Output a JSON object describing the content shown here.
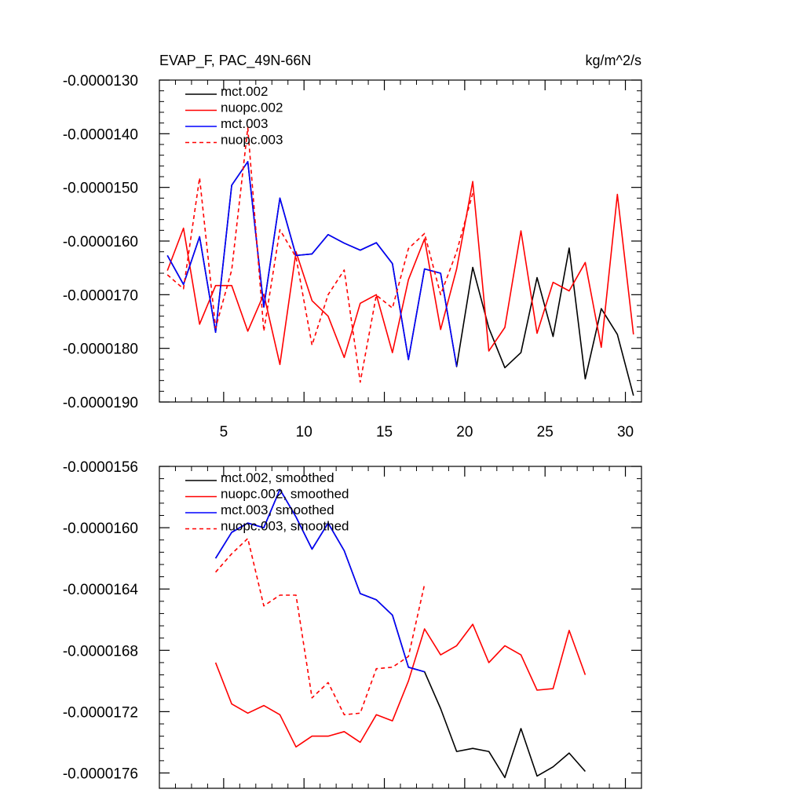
{
  "chart_data": [
    {
      "type": "line",
      "title": "EVAP_F, PAC_49N-66N",
      "units": "kg/m^2/s",
      "xlim": [
        1,
        31
      ],
      "ylim": [
        -1.9e-05,
        -1.3e-05
      ],
      "x_ticks": [
        5,
        10,
        15,
        20,
        25,
        30
      ],
      "x_tick_labels": [
        "5",
        "10",
        "15",
        "20",
        "25",
        "30"
      ],
      "y_ticks": [
        -1.3e-05,
        -1.4e-05,
        -1.5e-05,
        -1.6e-05,
        -1.7e-05,
        -1.8e-05,
        -1.9e-05
      ],
      "y_tick_labels": [
        "-0.0000130",
        "-0.0000140",
        "-0.0000150",
        "-0.0000160",
        "-0.0000170",
        "-0.0000180",
        "-0.0000190"
      ],
      "legend_position": "top-left",
      "series": [
        {
          "name": "mct.002",
          "color": "#000000",
          "dash": "solid",
          "x": [
            1.5,
            2.5,
            3.5,
            4.5,
            5.5,
            6.5,
            7.5,
            8.5,
            9.5,
            10.5,
            11.5,
            12.5,
            13.5,
            14.5,
            15.5,
            16.5,
            17.5,
            18.5,
            19.5,
            20.5,
            21.5,
            22.5,
            23.5,
            24.5,
            25.5,
            26.5,
            27.5,
            28.5,
            29.5,
            30.5
          ],
          "values": [
            -1.627e-05,
            -1.681e-05,
            -1.592e-05,
            -1.77e-05,
            -1.496e-05,
            -1.452e-05,
            -1.723e-05,
            -1.52e-05,
            -1.627e-05,
            -1.624e-05,
            -1.588e-05,
            -1.604e-05,
            -1.617e-05,
            -1.603e-05,
            -1.642e-05,
            -1.821e-05,
            -1.652e-05,
            -1.66e-05,
            -1.834e-05,
            -1.649e-05,
            -1.762e-05,
            -1.836e-05,
            -1.808e-05,
            -1.668e-05,
            -1.778e-05,
            -1.613e-05,
            -1.857e-05,
            -1.726e-05,
            -1.774e-05,
            -1.888e-05
          ]
        },
        {
          "name": "nuopc.002",
          "color": "#ff0000",
          "dash": "solid",
          "x": [
            1.5,
            2.5,
            3.5,
            4.5,
            5.5,
            6.5,
            7.5,
            8.5,
            9.5,
            10.5,
            11.5,
            12.5,
            13.5,
            14.5,
            15.5,
            16.5,
            17.5,
            18.5,
            19.5,
            20.5,
            21.5,
            22.5,
            23.5,
            24.5,
            25.5,
            26.5,
            27.5,
            28.5,
            29.5,
            30.5
          ],
          "values": [
            -1.655e-05,
            -1.576e-05,
            -1.755e-05,
            -1.683e-05,
            -1.683e-05,
            -1.768e-05,
            -1.699e-05,
            -1.83e-05,
            -1.62e-05,
            -1.711e-05,
            -1.74e-05,
            -1.817e-05,
            -1.716e-05,
            -1.7e-05,
            -1.808e-05,
            -1.672e-05,
            -1.596e-05,
            -1.765e-05,
            -1.652e-05,
            -1.489e-05,
            -1.805e-05,
            -1.761e-05,
            -1.581e-05,
            -1.772e-05,
            -1.677e-05,
            -1.693e-05,
            -1.64e-05,
            -1.798e-05,
            -1.513e-05,
            -1.774e-05
          ]
        },
        {
          "name": "mct.003",
          "color": "#0000ff",
          "dash": "solid",
          "x": [
            1.5,
            2.5,
            3.5,
            4.5,
            5.5,
            6.5,
            7.5,
            8.5,
            9.5,
            10.5,
            11.5,
            12.5,
            13.5,
            14.5,
            15.5,
            16.5,
            17.5,
            18.5,
            19.5
          ],
          "values": [
            -1.627e-05,
            -1.681e-05,
            -1.592e-05,
            -1.77e-05,
            -1.496e-05,
            -1.452e-05,
            -1.723e-05,
            -1.52e-05,
            -1.627e-05,
            -1.624e-05,
            -1.588e-05,
            -1.604e-05,
            -1.617e-05,
            -1.603e-05,
            -1.642e-05,
            -1.821e-05,
            -1.652e-05,
            -1.66e-05,
            -1.834e-05
          ]
        },
        {
          "name": "nuopc.003",
          "color": "#ff0000",
          "dash": "dashed",
          "x": [
            1.5,
            2.5,
            3.5,
            4.5,
            5.5,
            6.5,
            7.5,
            8.5,
            9.5,
            10.5,
            11.5,
            12.5,
            13.5,
            14.5,
            15.5,
            16.5,
            17.5,
            18.5,
            19.5,
            20.5
          ],
          "values": [
            -1.663e-05,
            -1.689e-05,
            -1.482e-05,
            -1.762e-05,
            -1.654e-05,
            -1.389e-05,
            -1.768e-05,
            -1.579e-05,
            -1.63e-05,
            -1.794e-05,
            -1.7e-05,
            -1.654e-05,
            -1.863e-05,
            -1.701e-05,
            -1.725e-05,
            -1.614e-05,
            -1.586e-05,
            -1.7e-05,
            -1.62e-05,
            -1.511e-05
          ]
        }
      ]
    },
    {
      "type": "line",
      "title": "",
      "units": "",
      "xlim": [
        1,
        31
      ],
      "ylim": [
        -1.77e-05,
        -1.56e-05
      ],
      "x_ticks": [
        5,
        10,
        15,
        20,
        25,
        30
      ],
      "x_tick_labels": [],
      "y_ticks": [
        -1.56e-05,
        -1.6e-05,
        -1.64e-05,
        -1.68e-05,
        -1.72e-05,
        -1.76e-05
      ],
      "y_tick_labels": [
        "-0.0000156",
        "-0.0000160",
        "-0.0000164",
        "-0.0000168",
        "-0.0000172",
        "-0.0000176"
      ],
      "legend_position": "top-left",
      "series": [
        {
          "name": "mct.002, smoothed",
          "color": "#000000",
          "dash": "solid",
          "x": [
            4.5,
            5.5,
            6.5,
            7.5,
            8.5,
            9.5,
            10.5,
            11.5,
            12.5,
            13.5,
            14.5,
            15.5,
            16.5,
            17.5,
            18.5,
            19.5,
            20.5,
            21.5,
            22.5,
            23.5,
            24.5,
            25.5,
            26.5,
            27.5
          ],
          "values": [
            -1.62e-05,
            -1.603e-05,
            -1.597e-05,
            -1.6e-05,
            -1.575e-05,
            -1.593e-05,
            -1.614e-05,
            -1.597e-05,
            -1.615e-05,
            -1.643e-05,
            -1.647e-05,
            -1.657e-05,
            -1.691e-05,
            -1.694e-05,
            -1.718e-05,
            -1.746e-05,
            -1.744e-05,
            -1.746e-05,
            -1.763e-05,
            -1.731e-05,
            -1.762e-05,
            -1.756e-05,
            -1.747e-05,
            -1.759e-05
          ]
        },
        {
          "name": "nuopc.002, smoothed",
          "color": "#ff0000",
          "dash": "solid",
          "x": [
            4.5,
            5.5,
            6.5,
            7.5,
            8.5,
            9.5,
            10.5,
            11.5,
            12.5,
            13.5,
            14.5,
            15.5,
            16.5,
            17.5,
            18.5,
            19.5,
            20.5,
            21.5,
            22.5,
            23.5,
            24.5,
            25.5,
            26.5,
            27.5
          ],
          "values": [
            -1.688e-05,
            -1.715e-05,
            -1.721e-05,
            -1.716e-05,
            -1.722e-05,
            -1.743e-05,
            -1.736e-05,
            -1.736e-05,
            -1.733e-05,
            -1.74e-05,
            -1.722e-05,
            -1.726e-05,
            -1.7e-05,
            -1.666e-05,
            -1.683e-05,
            -1.677e-05,
            -1.663e-05,
            -1.688e-05,
            -1.677e-05,
            -1.683e-05,
            -1.706e-05,
            -1.705e-05,
            -1.667e-05,
            -1.696e-05
          ]
        },
        {
          "name": "mct.003, smoothed",
          "color": "#0000ff",
          "dash": "solid",
          "x": [
            4.5,
            5.5,
            6.5,
            7.5,
            8.5,
            9.5,
            10.5,
            11.5,
            12.5,
            13.5,
            14.5,
            15.5,
            16.5,
            17.5
          ],
          "values": [
            -1.62e-05,
            -1.603e-05,
            -1.597e-05,
            -1.6e-05,
            -1.575e-05,
            -1.593e-05,
            -1.614e-05,
            -1.597e-05,
            -1.615e-05,
            -1.643e-05,
            -1.647e-05,
            -1.657e-05,
            -1.691e-05,
            -1.694e-05
          ]
        },
        {
          "name": "nuopc.003, smoothed",
          "color": "#ff0000",
          "dash": "dashed",
          "x": [
            4.5,
            5.5,
            6.5,
            7.5,
            8.5,
            9.5,
            10.5,
            11.5,
            12.5,
            13.5,
            14.5,
            15.5,
            16.5,
            17.5
          ],
          "values": [
            -1.629e-05,
            -1.617e-05,
            -1.607e-05,
            -1.651e-05,
            -1.644e-05,
            -1.644e-05,
            -1.711e-05,
            -1.701e-05,
            -1.722e-05,
            -1.721e-05,
            -1.692e-05,
            -1.691e-05,
            -1.684e-05,
            -1.637e-05
          ]
        }
      ]
    }
  ]
}
